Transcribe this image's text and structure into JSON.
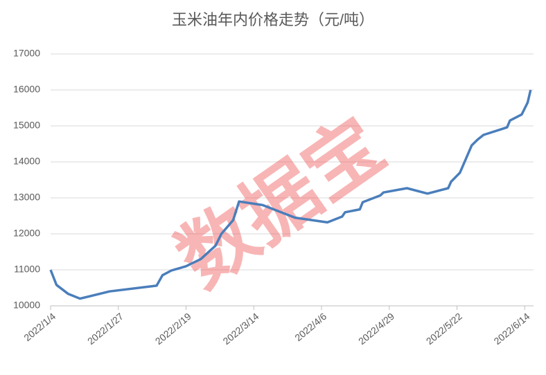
{
  "chart_data": {
    "type": "line",
    "title": "玉米油年内价格走势（元/吨）",
    "watermark": "数据宝",
    "x": [
      "2022/1/4",
      "2022/1/6",
      "2022/1/10",
      "2022/1/14",
      "2022/1/24",
      "2022/2/9",
      "2022/2/11",
      "2022/2/14",
      "2022/2/19",
      "2022/2/24",
      "2022/3/1",
      "2022/3/3",
      "2022/3/7",
      "2022/3/9",
      "2022/3/17",
      "2022/3/28",
      "2022/4/8",
      "2022/4/13",
      "2022/4/14",
      "2022/4/19",
      "2022/4/20",
      "2022/4/26",
      "2022/4/27",
      "2022/5/5",
      "2022/5/12",
      "2022/5/19",
      "2022/5/20",
      "2022/5/23",
      "2022/5/27",
      "2022/5/29",
      "2022/5/31",
      "2022/6/8",
      "2022/6/9",
      "2022/6/13",
      "2022/6/15",
      "2022/6/16"
    ],
    "series": [
      {
        "name": "玉米油",
        "color": "#4a7ebb",
        "values": [
          11000,
          10580,
          10330,
          10200,
          10400,
          10560,
          10850,
          10980,
          11100,
          11300,
          11670,
          12000,
          12380,
          12900,
          12800,
          12450,
          12320,
          12480,
          12600,
          12680,
          12880,
          13070,
          13150,
          13270,
          13120,
          13270,
          13450,
          13700,
          14460,
          14620,
          14750,
          14960,
          15150,
          15320,
          15650,
          16000
        ]
      }
    ],
    "xlim": [
      "2022/1/4",
      "2022/6/17"
    ],
    "xticks": [
      "2022/1/4",
      "2022/1/27",
      "2022/2/19",
      "2022/3/14",
      "2022/4/6",
      "2022/4/29",
      "2022/5/22",
      "2022/6/14"
    ],
    "ylim": [
      10000,
      17000
    ],
    "yticks": [
      10000,
      11000,
      12000,
      13000,
      14000,
      15000,
      16000,
      17000
    ],
    "grid": true
  }
}
